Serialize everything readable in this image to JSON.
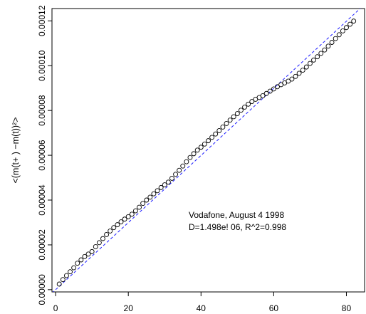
{
  "chart_data": {
    "type": "scatter",
    "title": "",
    "xlabel": "",
    "ylabel": "<(m(t+ ) −m(t))²>",
    "xlim": [
      -1,
      85
    ],
    "ylim": [
      -1e-06,
      0.0001255
    ],
    "x_ticks": [
      0,
      20,
      40,
      60,
      80
    ],
    "x_tick_labels": [
      "0",
      "20",
      "40",
      "60",
      "80"
    ],
    "y_ticks": [
      0,
      2e-05,
      4e-05,
      6e-05,
      8e-05,
      0.0001,
      0.00012
    ],
    "y_tick_labels": [
      "0.00000",
      "0.00002",
      "0.00004",
      "0.00006",
      "0.00008",
      "0.00010",
      "0.00012"
    ],
    "grid": false,
    "annotations": [
      "Vodafone, August 4 1998",
      "D=1.498e! 06, R^2=0.998"
    ],
    "points_x": [
      1,
      2,
      3,
      4,
      5,
      6,
      7,
      8,
      9,
      10,
      11,
      12,
      13,
      14,
      15,
      16,
      17,
      18,
      19,
      20,
      21,
      22,
      23,
      24,
      25,
      26,
      27,
      28,
      29,
      30,
      31,
      32,
      33,
      34,
      35,
      36,
      37,
      38,
      39,
      40,
      41,
      42,
      43,
      44,
      45,
      46,
      47,
      48,
      49,
      50,
      51,
      52,
      53,
      54,
      55,
      56,
      57,
      58,
      59,
      60,
      61,
      62,
      63,
      64,
      65,
      66,
      67,
      68,
      69,
      70,
      71,
      72,
      73,
      74,
      75,
      76,
      77,
      78,
      79,
      80,
      81,
      82
    ],
    "points_y": [
      2.5e-06,
      4.5e-06,
      6.3e-06,
      8e-06,
      9.8e-06,
      1.18e-05,
      1.33e-05,
      1.48e-05,
      1.59e-05,
      1.7e-05,
      1.92e-05,
      2.1e-05,
      2.28e-05,
      2.46e-05,
      2.62e-05,
      2.77e-05,
      2.9e-05,
      3.03e-05,
      3.15e-05,
      3.26e-05,
      3.37e-05,
      3.52e-05,
      3.68e-05,
      3.85e-05,
      4e-05,
      4.13e-05,
      4.28e-05,
      4.42e-05,
      4.56e-05,
      4.68e-05,
      4.8e-05,
      4.97e-05,
      5.15e-05,
      5.33e-05,
      5.52e-05,
      5.71e-05,
      5.9e-05,
      6.07e-05,
      6.23e-05,
      6.36e-05,
      6.5e-05,
      6.65e-05,
      6.8e-05,
      6.95e-05,
      7.1e-05,
      7.26e-05,
      7.42e-05,
      7.57e-05,
      7.72e-05,
      7.86e-05,
      8.01e-05,
      8.15e-05,
      8.28e-05,
      8.4e-05,
      8.5e-05,
      8.58e-05,
      8.66e-05,
      8.76e-05,
      8.86e-05,
      8.96e-05,
      9.06e-05,
      9.15e-05,
      9.23e-05,
      9.31e-05,
      9.4e-05,
      9.52e-05,
      9.66e-05,
      9.8e-05,
      9.94e-05,
      0.000101,
      0.0001025,
      0.000104,
      0.0001055,
      0.000107,
      0.0001087,
      0.0001104,
      0.0001121,
      0.0001138,
      0.0001155,
      0.000117,
      0.0001185,
      0.0001199
    ],
    "fit_line": {
      "slope": 1.498e-06,
      "intercept": 0,
      "style": "dashed",
      "color": "#1a1aff"
    }
  }
}
